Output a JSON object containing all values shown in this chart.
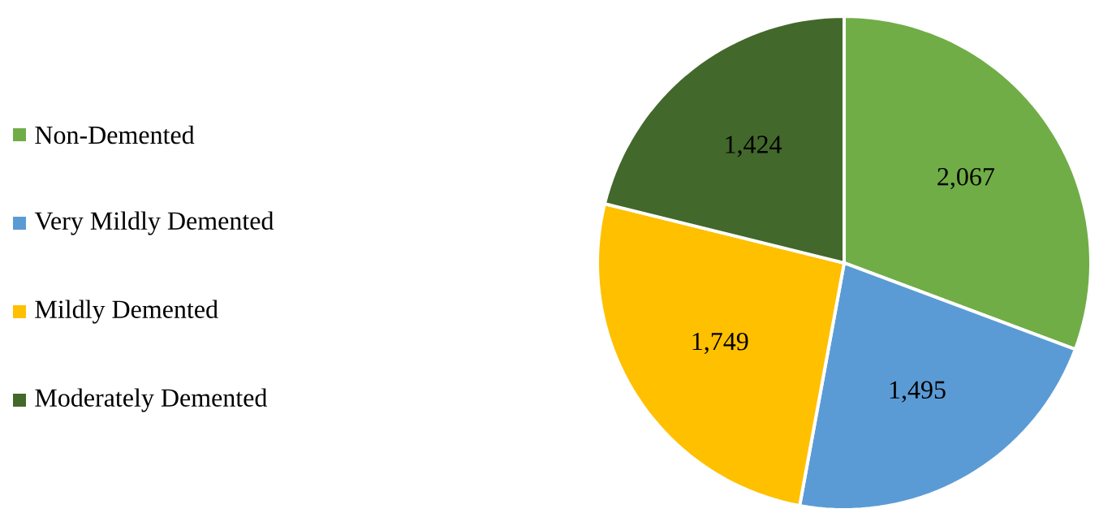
{
  "chart_data": {
    "type": "pie",
    "categories": [
      "Non-Demented",
      "Very Mildly Demented",
      "Mildly Demented",
      "Moderately Demented"
    ],
    "values": [
      2067,
      1495,
      1749,
      1424
    ],
    "value_labels": [
      "2,067",
      "1,495",
      "1,749",
      "1,424"
    ],
    "colors": [
      "#70ad47",
      "#5b9bd5",
      "#ffc000",
      "#43682b"
    ],
    "legend": "left"
  }
}
